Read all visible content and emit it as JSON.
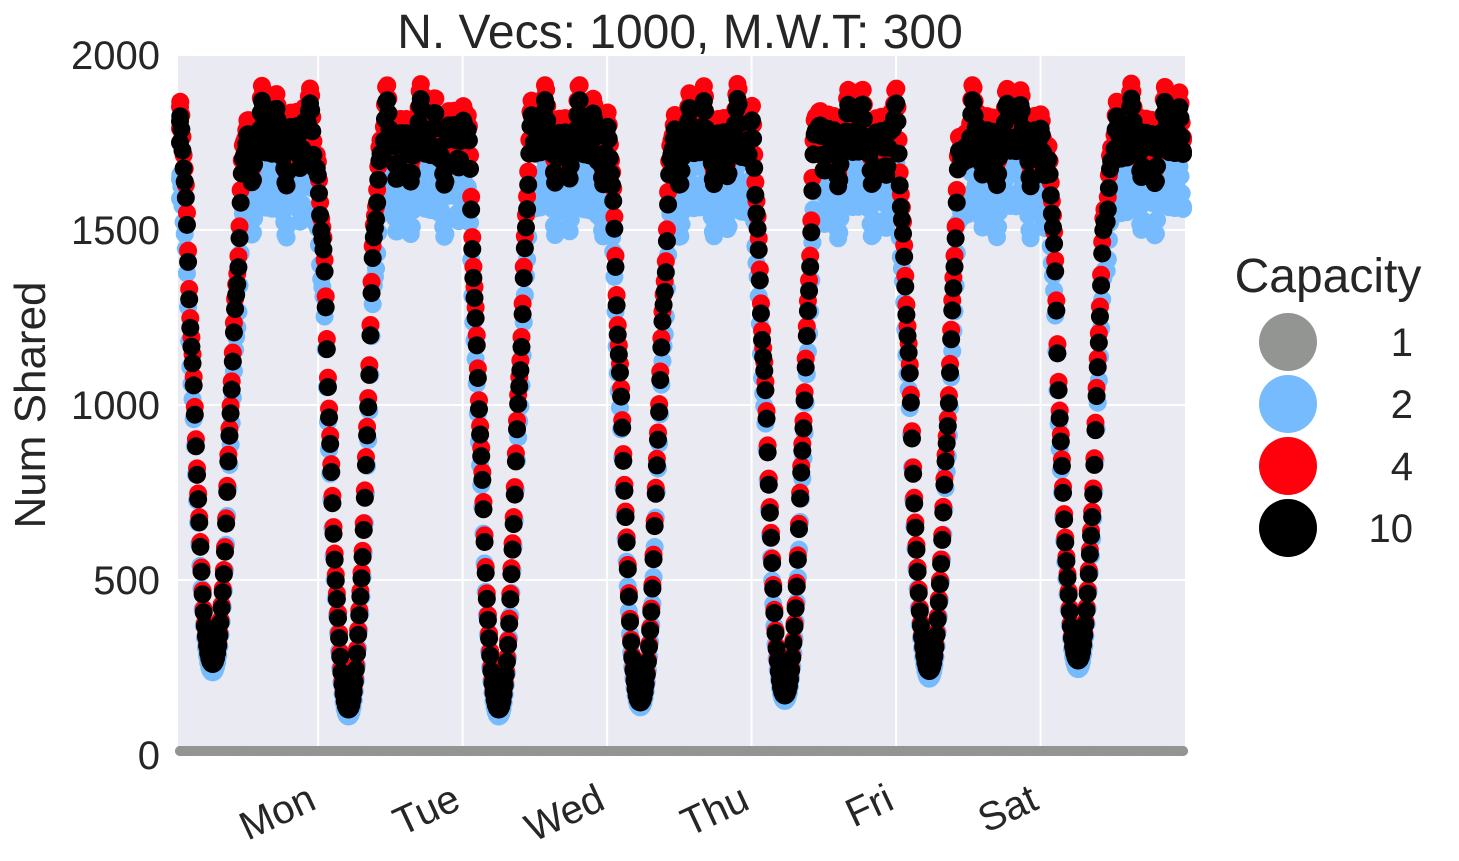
{
  "chart_data": {
    "type": "scatter",
    "title": "N. Vecs: 1000, M.W.T: 300",
    "xlabel": "",
    "ylabel": "Num Shared",
    "ylim": [
      0,
      2000
    ],
    "yticks": [
      0,
      500,
      1000,
      1500,
      2000
    ],
    "xlim": [
      0,
      6.97
    ],
    "xtick_positions": [
      0.97,
      1.97,
      2.97,
      3.97,
      4.97,
      5.97
    ],
    "xtick_labels": [
      "Mon",
      "Tue",
      "Wed",
      "Thu",
      "Fri",
      "Sat"
    ],
    "grid": true,
    "legend": {
      "title": "Capacity",
      "position": "right"
    },
    "series": [
      {
        "name": "1",
        "color": "#929591",
        "plateau": 0,
        "trough": 0
      },
      {
        "name": "2",
        "color": "#75bbfd",
        "plateau": 1590,
        "trough": 110
      },
      {
        "name": "4",
        "color": "#ff000d",
        "plateau": 1790,
        "trough": 140
      },
      {
        "name": "10",
        "color": "#000000",
        "plateau": 1750,
        "trough": 130
      }
    ],
    "daily_troughs": [
      {
        "x": 0.24,
        "y": 260
      },
      {
        "x": 1.18,
        "y": 120
      },
      {
        "x": 2.22,
        "y": 110
      },
      {
        "x": 3.2,
        "y": 150
      },
      {
        "x": 4.2,
        "y": 170
      },
      {
        "x": 5.2,
        "y": 240
      },
      {
        "x": 6.23,
        "y": 270
      }
    ]
  }
}
